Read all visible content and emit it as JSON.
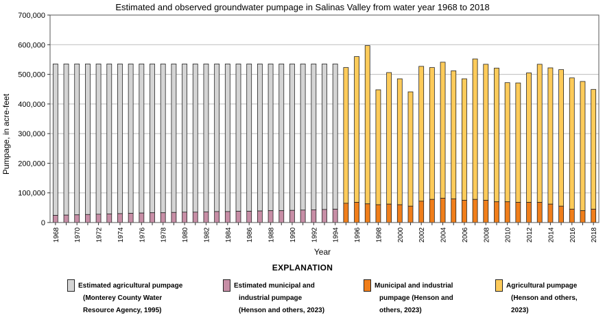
{
  "title": "Estimated and observed groundwater pumpage in Salinas Valley from water year 1968 to 2018",
  "colors": {
    "est_agricultural": "#d4d4d4",
    "est_municipal": "#c78ea6",
    "municipal": "#f07e1a",
    "agricultural": "#fdcb5a",
    "grid": "#bdbdbd",
    "outline": "#222222"
  },
  "legend": {
    "heading": "EXPLANATION",
    "items": [
      {
        "key": "est_agricultural",
        "lines": [
          "Estimated agricultural pumpage",
          "(Monterey County Water",
          "Resource Agency, 1995)"
        ]
      },
      {
        "key": "est_municipal",
        "lines": [
          "Estimated municipal and",
          "industrial pumpage",
          "(Henson and others, 2023)"
        ]
      },
      {
        "key": "municipal",
        "lines": [
          "Municipal and industrial",
          "pumpage (Henson and",
          "others, 2023)"
        ]
      },
      {
        "key": "agricultural",
        "lines": [
          "Agricultural pumpage",
          "(Henson and others,",
          "2023)"
        ]
      }
    ]
  },
  "chart_data": {
    "type": "bar",
    "stacked": true,
    "title": "Estimated and observed groundwater pumpage in Salinas Valley from water year 1968 to 2018",
    "xlabel": "Year",
    "ylabel": "Pumpage, in acre-feet",
    "ylim": [
      0,
      700000
    ],
    "yticks": [
      "0",
      "100,000",
      "200,000",
      "300,000",
      "400,000",
      "500,000",
      "600,000",
      "700,000"
    ],
    "grid": true,
    "categories": [
      1968,
      1969,
      1970,
      1971,
      1972,
      1973,
      1974,
      1975,
      1976,
      1977,
      1978,
      1979,
      1980,
      1981,
      1982,
      1983,
      1984,
      1985,
      1986,
      1987,
      1988,
      1989,
      1990,
      1991,
      1992,
      1993,
      1994,
      1995,
      1996,
      1997,
      1998,
      1999,
      2000,
      2001,
      2002,
      2003,
      2004,
      2005,
      2006,
      2007,
      2008,
      2009,
      2010,
      2011,
      2012,
      2013,
      2014,
      2015,
      2016,
      2017,
      2018
    ],
    "xtick_labels": [
      "1968",
      "1970",
      "1972",
      "1974",
      "1976",
      "1978",
      "1980",
      "1982",
      "1984",
      "1986",
      "1988",
      "1990",
      "1992",
      "1994",
      "1996",
      "1998",
      "2000",
      "2002",
      "2004",
      "2006",
      "2008",
      "2010",
      "2012",
      "2014",
      "2016",
      "2018"
    ],
    "estimated_period": {
      "years": [
        1968,
        1994
      ],
      "series": [
        {
          "name": "Estimated municipal and industrial pumpage",
          "key": "est_municipal",
          "values": [
            24000,
            25000,
            26000,
            27000,
            28000,
            29000,
            30000,
            31000,
            32000,
            33000,
            33000,
            34000,
            35000,
            35000,
            36000,
            37000,
            37000,
            38000,
            38000,
            39000,
            40000,
            40000,
            41000,
            42000,
            43000,
            44000,
            45000
          ]
        },
        {
          "name": "Estimated agricultural pumpage",
          "key": "est_agricultural",
          "total": 535000
        }
      ]
    },
    "observed_period": {
      "years": [
        1995,
        2018
      ],
      "series": [
        {
          "name": "Municipal and industrial pumpage",
          "key": "municipal",
          "values": [
            65000,
            68000,
            63000,
            60000,
            62000,
            60000,
            55000,
            72000,
            78000,
            82000,
            80000,
            75000,
            78000,
            75000,
            70000,
            70000,
            68000,
            68000,
            68000,
            62000,
            55000,
            45000,
            40000,
            45000
          ]
        },
        {
          "name": "Agricultural pumpage",
          "key": "agricultural",
          "totals": [
            523000,
            560000,
            597000,
            448000,
            506000,
            485000,
            441000,
            527000,
            523000,
            541000,
            512000,
            485000,
            552000,
            534000,
            521000,
            472000,
            471000,
            505000,
            534000,
            522000,
            516000,
            488000,
            476000,
            449000
          ]
        }
      ]
    }
  }
}
